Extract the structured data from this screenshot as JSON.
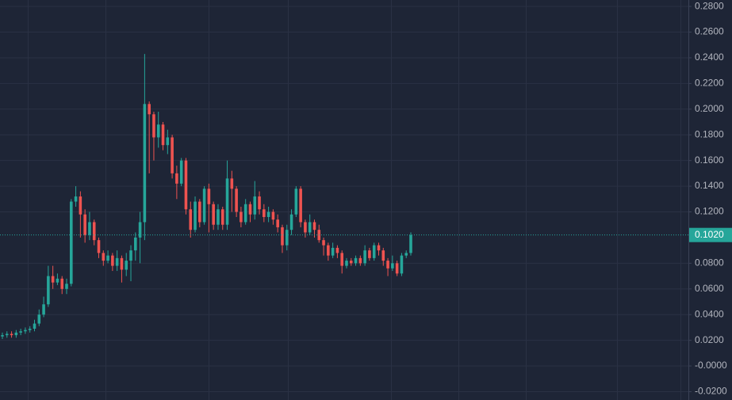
{
  "chart_data": {
    "type": "candlestick",
    "up_color": "#26a69a",
    "down_color": "#ef5350",
    "grid": true,
    "ylim": [
      -0.0265,
      0.285
    ],
    "yticks": [
      {
        "value": 0.28,
        "label": "0.2800"
      },
      {
        "value": 0.26,
        "label": "0.2600"
      },
      {
        "value": 0.24,
        "label": "0.2400"
      },
      {
        "value": 0.22,
        "label": "0.2200"
      },
      {
        "value": 0.2,
        "label": "0.2000"
      },
      {
        "value": 0.18,
        "label": "0.1800"
      },
      {
        "value": 0.16,
        "label": "0.1600"
      },
      {
        "value": 0.14,
        "label": "0.1400"
      },
      {
        "value": 0.12,
        "label": "0.1200"
      },
      {
        "value": 0.08,
        "label": "0.0800"
      },
      {
        "value": 0.06,
        "label": "0.0600"
      },
      {
        "value": 0.04,
        "label": "0.0400"
      },
      {
        "value": 0.02,
        "label": "0.0200"
      },
      {
        "value": 0,
        "label": "-0.0000"
      },
      {
        "value": -0.02,
        "label": "-0.0200"
      }
    ],
    "last_price": {
      "value": 0.102,
      "label": "0.1020"
    },
    "open": [
      0.023,
      0.024,
      0.025,
      0.024,
      0.026,
      0.027,
      0.028,
      0.029,
      0.033,
      0.04,
      0.048,
      0.07,
      0.065,
      0.068,
      0.06,
      0.064,
      0.128,
      0.132,
      0.118,
      0.102,
      0.112,
      0.098,
      0.088,
      0.082,
      0.086,
      0.078,
      0.084,
      0.075,
      0.082,
      0.09,
      0.1,
      0.112,
      0.204,
      0.196,
      0.178,
      0.188,
      0.172,
      0.178,
      0.15,
      0.142,
      0.16,
      0.122,
      0.106,
      0.128,
      0.112,
      0.138,
      0.126,
      0.11,
      0.122,
      0.11,
      0.146,
      0.138,
      0.12,
      0.112,
      0.126,
      0.118,
      0.132,
      0.122,
      0.116,
      0.12,
      0.114,
      0.108,
      0.094,
      0.106,
      0.118,
      0.138,
      0.112,
      0.104,
      0.112,
      0.106,
      0.098,
      0.094,
      0.086,
      0.092,
      0.088,
      0.078,
      0.082,
      0.08,
      0.084,
      0.08,
      0.09,
      0.084,
      0.094,
      0.09,
      0.082,
      0.076,
      0.08,
      0.072,
      0.086,
      0.088
    ],
    "high": [
      0.026,
      0.027,
      0.027,
      0.028,
      0.029,
      0.03,
      0.031,
      0.036,
      0.044,
      0.054,
      0.078,
      0.078,
      0.072,
      0.07,
      0.068,
      0.13,
      0.14,
      0.136,
      0.122,
      0.12,
      0.114,
      0.1,
      0.09,
      0.09,
      0.088,
      0.09,
      0.086,
      0.088,
      0.094,
      0.104,
      0.12,
      0.243,
      0.206,
      0.198,
      0.198,
      0.19,
      0.184,
      0.18,
      0.156,
      0.162,
      0.162,
      0.128,
      0.132,
      0.13,
      0.14,
      0.142,
      0.128,
      0.126,
      0.124,
      0.16,
      0.152,
      0.14,
      0.124,
      0.13,
      0.128,
      0.144,
      0.136,
      0.126,
      0.124,
      0.122,
      0.118,
      0.11,
      0.11,
      0.122,
      0.14,
      0.14,
      0.114,
      0.118,
      0.114,
      0.11,
      0.1,
      0.096,
      0.096,
      0.094,
      0.09,
      0.084,
      0.084,
      0.086,
      0.086,
      0.094,
      0.092,
      0.096,
      0.096,
      0.092,
      0.084,
      0.086,
      0.082,
      0.088,
      0.09,
      0.104
    ],
    "low": [
      0.021,
      0.022,
      0.022,
      0.022,
      0.024,
      0.025,
      0.026,
      0.027,
      0.031,
      0.038,
      0.046,
      0.06,
      0.063,
      0.056,
      0.056,
      0.062,
      0.124,
      0.1,
      0.096,
      0.098,
      0.094,
      0.084,
      0.078,
      0.08,
      0.074,
      0.074,
      0.065,
      0.07,
      0.066,
      0.082,
      0.08,
      0.098,
      0.15,
      0.16,
      0.17,
      0.168,
      0.165,
      0.146,
      0.13,
      0.14,
      0.118,
      0.1,
      0.104,
      0.108,
      0.11,
      0.104,
      0.106,
      0.106,
      0.106,
      0.106,
      0.12,
      0.116,
      0.108,
      0.11,
      0.112,
      0.114,
      0.118,
      0.112,
      0.112,
      0.11,
      0.104,
      0.088,
      0.09,
      0.102,
      0.116,
      0.108,
      0.1,
      0.102,
      0.1,
      0.096,
      0.086,
      0.082,
      0.084,
      0.084,
      0.072,
      0.076,
      0.078,
      0.078,
      0.078,
      0.078,
      0.082,
      0.082,
      0.086,
      0.078,
      0.07,
      0.074,
      0.07,
      0.07,
      0.084,
      0.086
    ],
    "close": [
      0.024,
      0.025,
      0.024,
      0.026,
      0.027,
      0.028,
      0.029,
      0.033,
      0.04,
      0.048,
      0.07,
      0.065,
      0.068,
      0.06,
      0.064,
      0.128,
      0.132,
      0.118,
      0.102,
      0.112,
      0.098,
      0.088,
      0.082,
      0.086,
      0.078,
      0.084,
      0.075,
      0.082,
      0.09,
      0.1,
      0.112,
      0.204,
      0.196,
      0.178,
      0.188,
      0.172,
      0.178,
      0.15,
      0.142,
      0.16,
      0.122,
      0.106,
      0.128,
      0.112,
      0.138,
      0.126,
      0.11,
      0.122,
      0.11,
      0.146,
      0.138,
      0.12,
      0.112,
      0.126,
      0.118,
      0.132,
      0.122,
      0.116,
      0.12,
      0.114,
      0.108,
      0.094,
      0.106,
      0.118,
      0.138,
      0.112,
      0.104,
      0.112,
      0.106,
      0.098,
      0.094,
      0.086,
      0.092,
      0.088,
      0.078,
      0.082,
      0.08,
      0.084,
      0.08,
      0.09,
      0.084,
      0.094,
      0.09,
      0.082,
      0.076,
      0.08,
      0.072,
      0.086,
      0.088,
      0.102
    ]
  }
}
